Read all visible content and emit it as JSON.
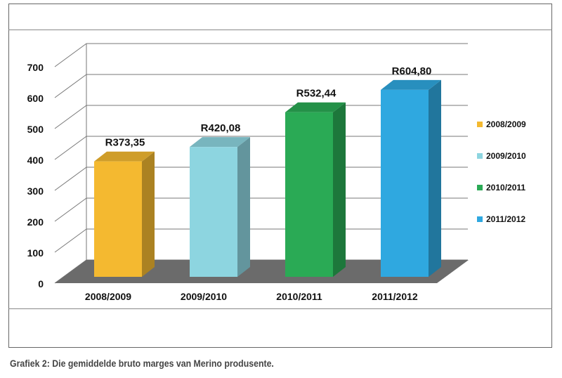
{
  "chart_data": {
    "type": "bar",
    "categories": [
      "2008/2009",
      "2009/2010",
      "2010/2011",
      "2011/2012"
    ],
    "values": [
      373.35,
      420.08,
      532.44,
      604.8
    ],
    "data_labels": [
      "R373,35",
      "R420,08",
      "R532,44",
      "R604,80"
    ],
    "colors": [
      "#F4B930",
      "#8DD5E0",
      "#2AAA55",
      "#2FA8E0"
    ],
    "ylim": [
      0,
      700
    ],
    "yticks": [
      "0",
      "100",
      "200",
      "300",
      "400",
      "500",
      "600",
      "700"
    ],
    "legend": [
      "2008/2009",
      "2009/2010",
      "2010/2011",
      "2011/2012"
    ],
    "legend_position": "right",
    "grid": true,
    "style": "3d-columns",
    "floor_color": "#6B6B6B"
  },
  "caption": "Grafiek 2: Die gemiddelde bruto marges van Merino produsente."
}
